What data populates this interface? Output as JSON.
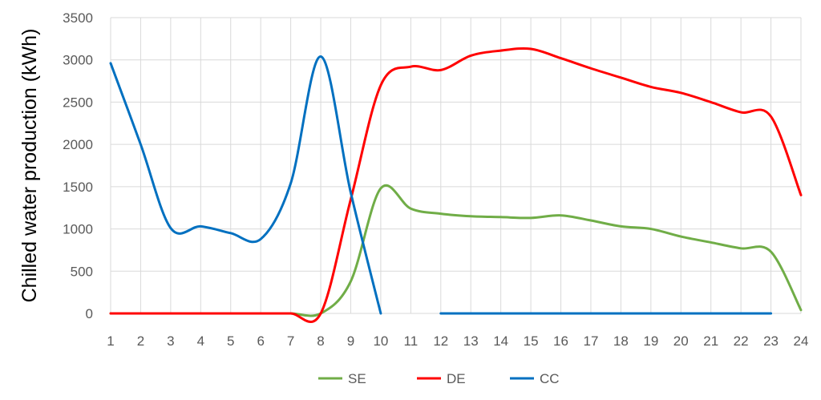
{
  "chart_data": {
    "type": "line",
    "title": "",
    "xlabel": "",
    "ylabel": "Chilled water production (kWh)",
    "x": [
      1,
      2,
      3,
      4,
      5,
      6,
      7,
      8,
      9,
      10,
      11,
      12,
      13,
      14,
      15,
      16,
      17,
      18,
      19,
      20,
      21,
      22,
      23,
      24
    ],
    "xlim": [
      1,
      24
    ],
    "ylim": [
      0,
      3500
    ],
    "yticks": [
      0,
      500,
      1000,
      1500,
      2000,
      2500,
      3000,
      3500
    ],
    "grid": true,
    "legend_position": "bottom",
    "series": [
      {
        "name": "SE",
        "color": "#70ad47",
        "values": [
          0,
          0,
          0,
          0,
          0,
          0,
          0,
          0,
          380,
          1480,
          1240,
          1180,
          1150,
          1140,
          1130,
          1160,
          1100,
          1030,
          1000,
          910,
          840,
          770,
          730,
          40
        ]
      },
      {
        "name": "DE",
        "color": "#ff0000",
        "values": [
          0,
          0,
          0,
          0,
          0,
          0,
          0,
          0,
          1350,
          2700,
          2920,
          2880,
          3050,
          3110,
          3130,
          3020,
          2900,
          2790,
          2680,
          2610,
          2500,
          2380,
          2330,
          1400
        ]
      },
      {
        "name": "CC",
        "color": "#0070c0",
        "values": [
          2960,
          2000,
          1010,
          1030,
          950,
          880,
          1540,
          3040,
          1430,
          0,
          null,
          0,
          0,
          0,
          0,
          0,
          0,
          0,
          0,
          0,
          0,
          0,
          0,
          null
        ]
      }
    ]
  }
}
